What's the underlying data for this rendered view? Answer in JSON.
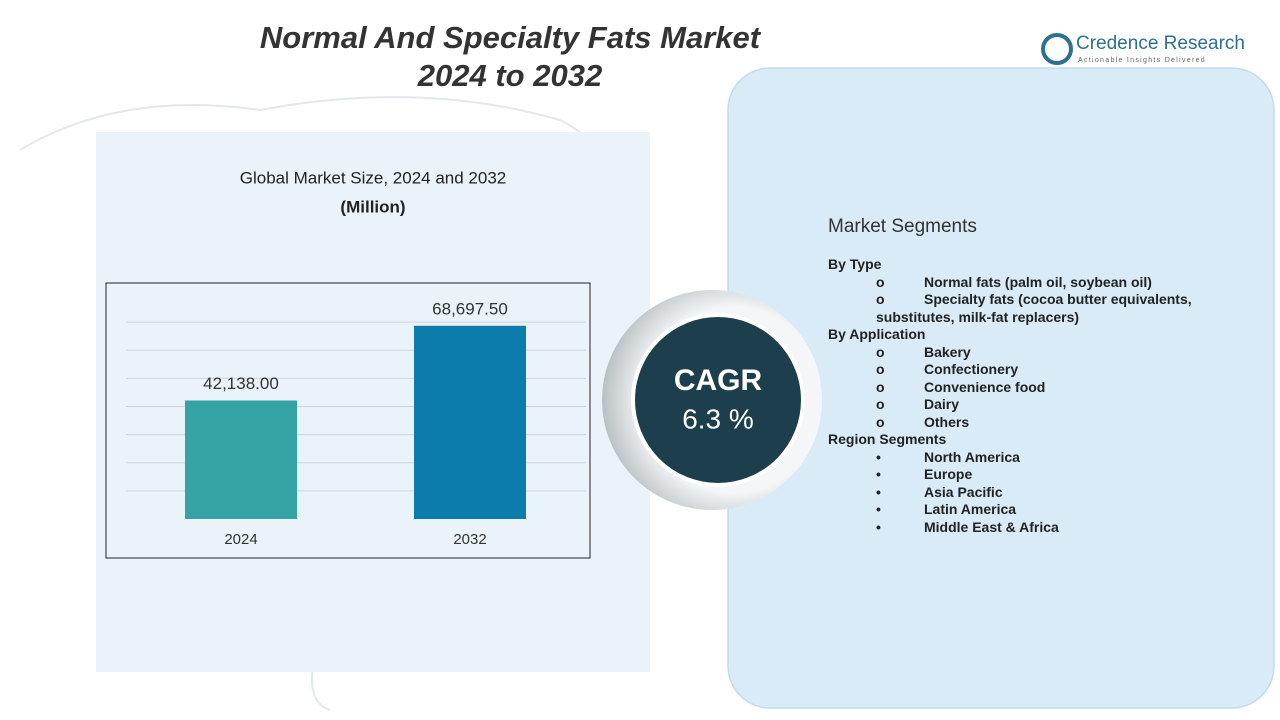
{
  "header": {
    "title_line1": "Normal And Specialty Fats Market",
    "title_line2": "2024 to 2032"
  },
  "logo": {
    "name": "Credence Research",
    "tagline": "Actionable Insights Delivered"
  },
  "chart_data": {
    "type": "bar",
    "title": "Global Market Size,  2024 and 2032",
    "subtitle": "(Million)",
    "categories": [
      "2024",
      "2032"
    ],
    "values": [
      42138.0,
      68697.5
    ],
    "value_labels": [
      "42,138.00",
      "68,697.50"
    ],
    "colors": [
      "#35a3a3",
      "#0b7cab"
    ],
    "ylim": [
      0,
      80000
    ],
    "yticks": [
      10000,
      20000,
      30000,
      40000,
      50000,
      60000,
      70000
    ],
    "grid": true,
    "ytick_labels": false
  },
  "cagr": {
    "label": "CAGR",
    "value": "6.3 %"
  },
  "segments": {
    "title": "Market Segments",
    "groups": [
      {
        "heading": "By Type",
        "bullet": "o",
        "items": [
          "Normal fats (palm oil, soybean oil)",
          "Specialty fats (cocoa butter equivalents, substitutes,  milk-fat replacers)"
        ]
      },
      {
        "heading": "By Application",
        "bullet": "o",
        "items": [
          "Bakery",
          "Confectionery",
          "Convenience food",
          "Dairy",
          "Others"
        ]
      },
      {
        "heading": "Region Segments",
        "bullet": "•",
        "items": [
          "North America",
          "Europe",
          "Asia Pacific",
          "Latin America",
          "Middle East & Africa"
        ]
      }
    ]
  }
}
